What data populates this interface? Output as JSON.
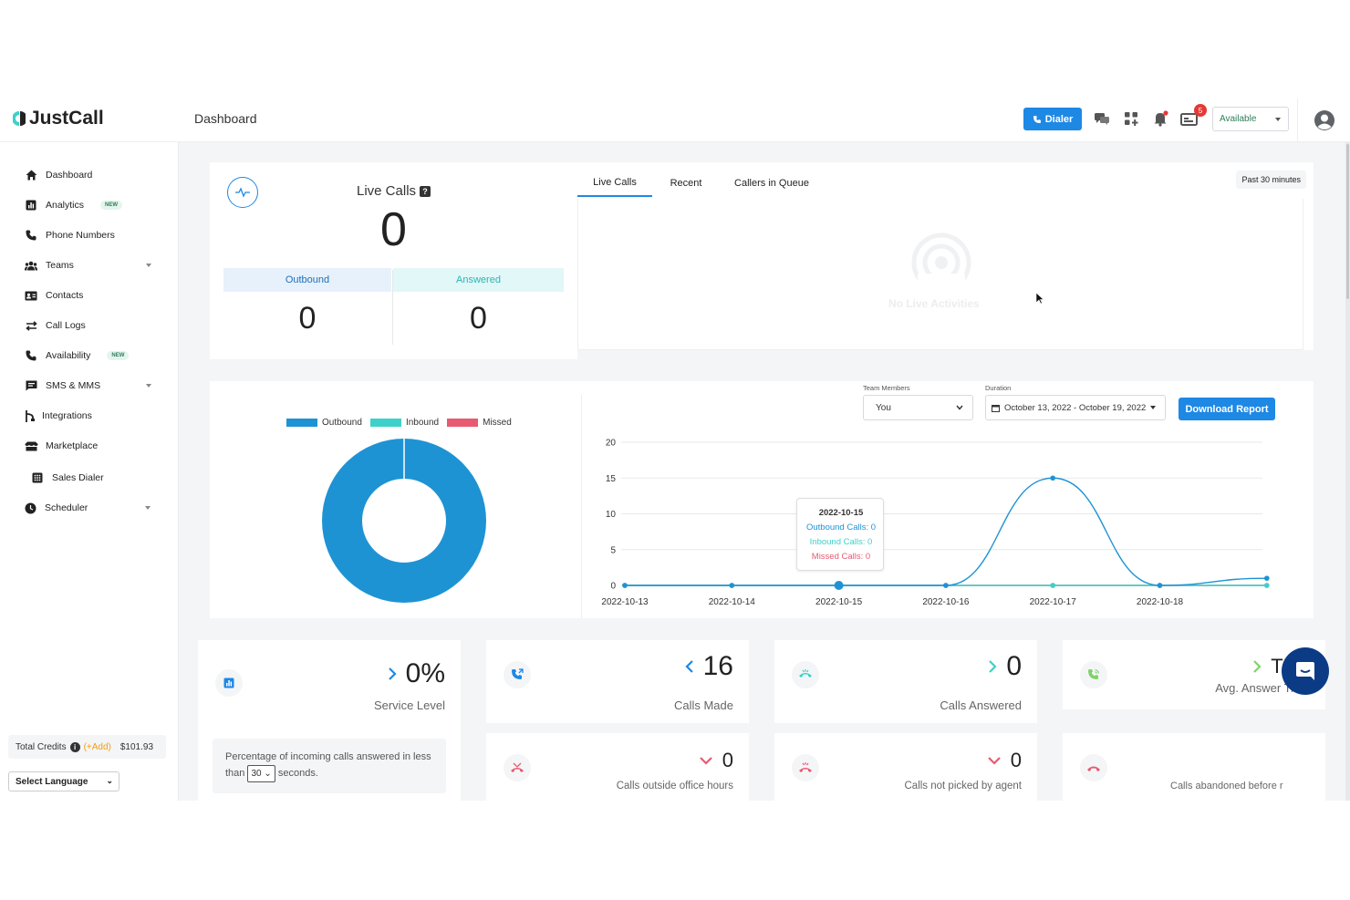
{
  "header": {
    "logo_text": "JustCall",
    "page_title": "Dashboard",
    "dialer_label": "Dialer",
    "notification_count": "5",
    "status_value": "Available"
  },
  "sidebar": {
    "items": [
      {
        "label": "Dashboard",
        "icon": "home-icon"
      },
      {
        "label": "Analytics",
        "icon": "bar-chart-icon",
        "badge": "NEW"
      },
      {
        "label": "Phone Numbers",
        "icon": "phone-icon"
      },
      {
        "label": "Teams",
        "icon": "people-icon",
        "expandable": true
      },
      {
        "label": "Contacts",
        "icon": "contact-card-icon"
      },
      {
        "label": "Call Logs",
        "icon": "arrows-swap-icon"
      },
      {
        "label": "Availability",
        "icon": "phone-icon",
        "badge": "NEW"
      },
      {
        "label": "SMS & MMS",
        "icon": "message-icon",
        "expandable": true
      },
      {
        "label": "Integrations",
        "icon": "plug-icon"
      },
      {
        "label": "Marketplace",
        "icon": "store-icon"
      },
      {
        "label": "Sales Dialer",
        "icon": "keypad-icon"
      },
      {
        "label": "Scheduler",
        "icon": "clock-icon",
        "expandable": true
      }
    ],
    "credits_label": "Total Credits",
    "credits_add": "(+Add)",
    "credits_value": "$101.93",
    "language_label": "Select Language"
  },
  "live_calls": {
    "title": "Live Calls",
    "count": "0",
    "outbound_label": "Outbound",
    "outbound_value": "0",
    "answered_label": "Answered",
    "answered_value": "0"
  },
  "activity_tabs": {
    "tabs": [
      "Live Calls",
      "Recent",
      "Callers in Queue"
    ],
    "active_tab": "Live Calls",
    "time_range": "Past 30 minutes",
    "empty_message": "No Live Activities"
  },
  "report": {
    "team_members_label": "Team Members",
    "team_members_value": "You",
    "duration_label": "Duration",
    "duration_value": "October 13, 2022 - October 19, 2022",
    "download_label": "Download Report",
    "tooltip": {
      "date": "2022-10-15",
      "outbound": "Outbound Calls: 0",
      "inbound": "Inbound Calls: 0",
      "missed": "Missed Calls: 0"
    }
  },
  "colors": {
    "outbound": "#1e93d4",
    "inbound": "#3dd1c9",
    "missed": "#e85a72",
    "accent": "#1e88e5"
  },
  "chart_data": [
    {
      "type": "pie",
      "legend": [
        "Outbound",
        "Inbound",
        "Missed"
      ],
      "values": [
        16,
        0,
        0
      ],
      "donut": true
    },
    {
      "type": "line",
      "x": [
        "2022-10-13",
        "2022-10-14",
        "2022-10-15",
        "2022-10-16",
        "2022-10-17",
        "2022-10-18",
        "2022-10-19"
      ],
      "xticks": [
        "2022-10-13",
        "2022-10-14",
        "2022-10-15",
        "2022-10-16",
        "2022-10-17",
        "2022-10-18"
      ],
      "series": [
        {
          "name": "Outbound",
          "values": [
            0,
            0,
            0,
            0,
            15,
            0,
            1
          ]
        },
        {
          "name": "Inbound",
          "values": [
            0,
            0,
            0,
            0,
            0,
            0,
            0
          ]
        },
        {
          "name": "Missed",
          "values": [
            0,
            0,
            0,
            0,
            0,
            0,
            0
          ]
        }
      ],
      "yticks": [
        0,
        5,
        10,
        15,
        20
      ],
      "ylim": [
        0,
        20
      ],
      "grid": true
    }
  ],
  "stats": {
    "service_level_value": "0%",
    "service_level_label": "Service Level",
    "service_desc_prefix": "Percentage of incoming calls answered in less than",
    "service_desc_seconds": "30",
    "service_desc_suffix": "seconds.",
    "calls_made_value": "16",
    "calls_made_label": "Calls Made",
    "calls_answered_value": "0",
    "calls_answered_label": "Calls Answered",
    "avg_answer_value": "TBA",
    "avg_answer_label": "Avg. Answer Time",
    "outside_hours_value": "0",
    "outside_hours_label": "Calls outside office hours",
    "not_picked_value": "0",
    "not_picked_label": "Calls not picked by agent",
    "abandoned_label": "Calls abandoned before r"
  }
}
